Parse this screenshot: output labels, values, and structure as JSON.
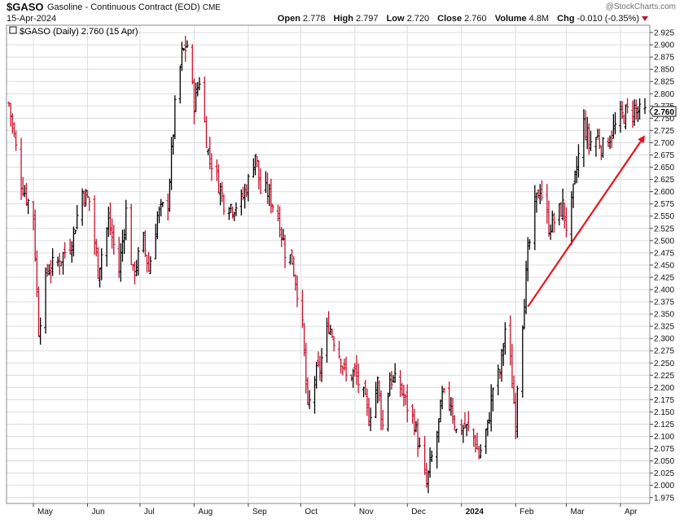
{
  "header": {
    "symbol": "$GASO",
    "description": "Gasoline - Continuous Contract (EOD)",
    "exchange": "CME",
    "date": "15-Apr-2024",
    "brand": "@StockCharts.com",
    "quote": {
      "open_label": "Open",
      "open": "2.778",
      "high_label": "High",
      "high": "2.797",
      "low_label": "Low",
      "low": "2.720",
      "close_label": "Close",
      "close": "2.760",
      "volume_label": "Volume",
      "volume": "4.8M",
      "chg_label": "Chg",
      "chg": "-0.010 (-0.35%)"
    }
  },
  "legend": {
    "text": "$GASO (Daily) 2.760 (15 Apr)"
  },
  "colors": {
    "up": "#000000",
    "down": "#c8102e",
    "arrow": "#e8141b",
    "grid": "#dcdcdc"
  },
  "chart_data": {
    "type": "ohlc",
    "title": "$GASO Gasoline - Continuous Contract (EOD)",
    "x_tick_labels": [
      "May",
      "Jun",
      "Jul",
      "Aug",
      "Sep",
      "Oct",
      "Nov",
      "Dec",
      "2024",
      "Feb",
      "Mar",
      "Apr"
    ],
    "y_tick_labels": [
      "2.925",
      "2.900",
      "2.875",
      "2.850",
      "2.825",
      "2.800",
      "2.775",
      "2.750",
      "2.725",
      "2.700",
      "2.675",
      "2.650",
      "2.625",
      "2.600",
      "2.575",
      "2.550",
      "2.525",
      "2.500",
      "2.475",
      "2.450",
      "2.425",
      "2.400",
      "2.375",
      "2.350",
      "2.325",
      "2.300",
      "2.275",
      "2.250",
      "2.225",
      "2.200",
      "2.175",
      "2.150",
      "2.125",
      "2.100",
      "2.075",
      "2.050",
      "2.025",
      "2.000",
      "1.975"
    ],
    "ylim": [
      1.963,
      2.94
    ],
    "last_value_label": "2.760",
    "close_path": [
      [
        "2023-04-17",
        2.78
      ],
      [
        "2023-04-24",
        2.62
      ],
      [
        "2023-05-01",
        2.55
      ],
      [
        "2023-05-04",
        2.32
      ],
      [
        "2023-05-09",
        2.44
      ],
      [
        "2023-05-16",
        2.46
      ],
      [
        "2023-05-23",
        2.5
      ],
      [
        "2023-05-29",
        2.6
      ],
      [
        "2023-06-02",
        2.58
      ],
      [
        "2023-06-07",
        2.44
      ],
      [
        "2023-06-13",
        2.54
      ],
      [
        "2023-06-19",
        2.44
      ],
      [
        "2023-06-23",
        2.56
      ],
      [
        "2023-06-27",
        2.43
      ],
      [
        "2023-07-03",
        2.5
      ],
      [
        "2023-07-06",
        2.44
      ],
      [
        "2023-07-11",
        2.55
      ],
      [
        "2023-07-17",
        2.58
      ],
      [
        "2023-07-21",
        2.77
      ],
      [
        "2023-07-25",
        2.88
      ],
      [
        "2023-07-28",
        2.9
      ],
      [
        "2023-08-01",
        2.78
      ],
      [
        "2023-08-04",
        2.83
      ],
      [
        "2023-08-09",
        2.68
      ],
      [
        "2023-08-14",
        2.63
      ],
      [
        "2023-08-18",
        2.58
      ],
      [
        "2023-08-23",
        2.57
      ],
      [
        "2023-08-28",
        2.58
      ],
      [
        "2023-09-01",
        2.62
      ],
      [
        "2023-09-05",
        2.68
      ],
      [
        "2023-09-08",
        2.6
      ],
      [
        "2023-09-12",
        2.6
      ],
      [
        "2023-09-18",
        2.55
      ],
      [
        "2023-09-22",
        2.48
      ],
      [
        "2023-09-26",
        2.46
      ],
      [
        "2023-09-29",
        2.4
      ],
      [
        "2023-10-02",
        2.32
      ],
      [
        "2023-10-05",
        2.15
      ],
      [
        "2023-10-09",
        2.22
      ],
      [
        "2023-10-12",
        2.24
      ],
      [
        "2023-10-17",
        2.33
      ],
      [
        "2023-10-20",
        2.3
      ],
      [
        "2023-10-24",
        2.26
      ],
      [
        "2023-10-27",
        2.22
      ],
      [
        "2023-11-01",
        2.23
      ],
      [
        "2023-11-06",
        2.18
      ],
      [
        "2023-11-09",
        2.14
      ],
      [
        "2023-11-14",
        2.21
      ],
      [
        "2023-11-17",
        2.12
      ],
      [
        "2023-11-21",
        2.22
      ],
      [
        "2023-11-27",
        2.2
      ],
      [
        "2023-11-30",
        2.17
      ],
      [
        "2023-12-05",
        2.13
      ],
      [
        "2023-12-08",
        2.07
      ],
      [
        "2023-12-12",
        2.0
      ],
      [
        "2023-12-14",
        2.04
      ],
      [
        "2023-12-18",
        2.1
      ],
      [
        "2023-12-21",
        2.18
      ],
      [
        "2023-12-26",
        2.17
      ],
      [
        "2023-12-29",
        2.11
      ],
      [
        "2024-01-03",
        2.12
      ],
      [
        "2024-01-08",
        2.1
      ],
      [
        "2024-01-11",
        2.06
      ],
      [
        "2024-01-16",
        2.12
      ],
      [
        "2024-01-19",
        2.2
      ],
      [
        "2024-01-23",
        2.23
      ],
      [
        "2024-01-26",
        2.32
      ],
      [
        "2024-01-29",
        2.25
      ],
      [
        "2024-02-01",
        2.13
      ],
      [
        "2024-02-02",
        2.21
      ],
      [
        "2024-02-08",
        2.47
      ],
      [
        "2024-02-12",
        2.57
      ],
      [
        "2024-02-15",
        2.61
      ],
      [
        "2024-02-20",
        2.53
      ],
      [
        "2024-02-23",
        2.54
      ],
      [
        "2024-02-28",
        2.57
      ],
      [
        "2024-03-01",
        2.53
      ],
      [
        "2024-03-04",
        2.57
      ],
      [
        "2024-03-07",
        2.65
      ],
      [
        "2024-03-11",
        2.74
      ],
      [
        "2024-03-14",
        2.7
      ],
      [
        "2024-03-19",
        2.71
      ],
      [
        "2024-03-22",
        2.69
      ],
      [
        "2024-03-27",
        2.72
      ],
      [
        "2024-04-01",
        2.75
      ],
      [
        "2024-04-04",
        2.76
      ],
      [
        "2024-04-09",
        2.77
      ],
      [
        "2024-04-12",
        2.76
      ],
      [
        "2024-04-15",
        2.76
      ]
    ],
    "annotation": {
      "type": "arrow",
      "from": [
        "2024-02-08",
        2.365
      ],
      "to": [
        "2024-04-15",
        2.715
      ]
    },
    "grid": true
  }
}
